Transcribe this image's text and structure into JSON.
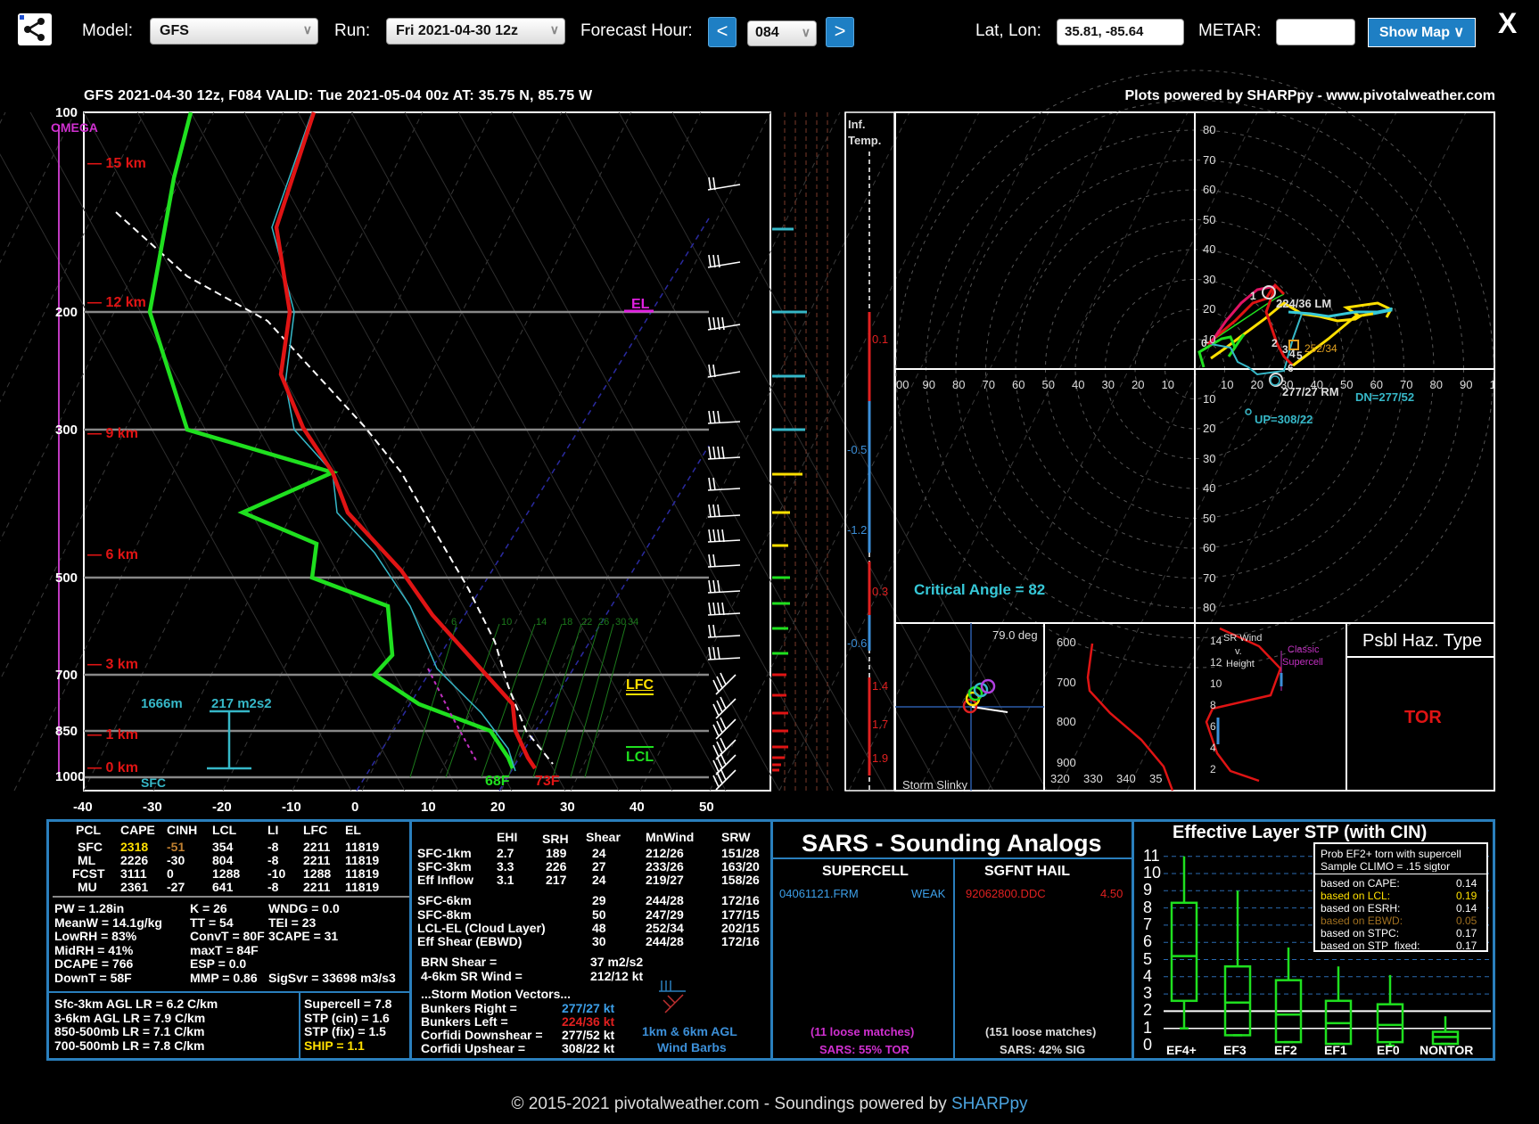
{
  "toolbar": {
    "model_label": "Model:",
    "model_value": "GFS",
    "run_label": "Run:",
    "run_value": "Fri 2021-04-30 12z",
    "forecast_hour_label": "Forecast Hour:",
    "prev_label": "<",
    "forecast_hour_value": "084",
    "next_label": ">",
    "latlon_label": "Lat, Lon:",
    "latlon_value": "35.81, -85.64",
    "metar_label": "METAR:",
    "metar_value": "",
    "show_map_label": "Show Map ∨",
    "close_label": "X"
  },
  "header": {
    "title": "GFS 2021-04-30 12z, F084  VALID: Tue 2021-05-04 00z  AT: 35.75 N, 85.75 W",
    "credit": "Plots powered by SHARPpy - www.pivotalweather.com"
  },
  "skewt": {
    "pressure_labels": [
      "100",
      "200",
      "300",
      "500",
      "700",
      "850",
      "1000"
    ],
    "height_labels": [
      "15 km",
      "12 km",
      "9 km",
      "6 km",
      "3 km",
      "1 km",
      "0 km"
    ],
    "omega_label": "OMEGA",
    "temp_ticks": [
      "-40",
      "-30",
      "-20",
      "-10",
      "0",
      "10",
      "20",
      "30",
      "40",
      "50"
    ],
    "el_label": "EL",
    "lfc_label": "LFC",
    "lcl_label": "LCL",
    "sfc_label": "SFC",
    "surface_td": "68F",
    "surface_t": "73F",
    "eff_inflow_depth": "1666m",
    "eff_srh": "217 m2s2",
    "mixing_ratios": [
      "6",
      "10",
      "14",
      "18",
      "22",
      "26",
      "30",
      "34"
    ],
    "colors": {
      "temp": "#e01414",
      "dewpoint": "#1fe01f",
      "parcel": "#ffffff",
      "wetbulb": "#36b8c8"
    }
  },
  "inferred_temp": {
    "label1": "Inf.",
    "label2": "Temp.",
    "values": [
      "0.1",
      "-0.5",
      "-1.2",
      "0.3",
      "-0.6",
      "1.4",
      "1.7",
      "1.9"
    ]
  },
  "hodograph": {
    "rings": [
      "10",
      "20",
      "30",
      "40",
      "50",
      "60",
      "70",
      "80"
    ],
    "x_ticks_left": [
      "100",
      "90",
      "80",
      "70",
      "60",
      "50",
      "40",
      "30",
      "20",
      "10"
    ],
    "x_ticks_right": [
      "10",
      "20",
      "30",
      "40",
      "50",
      "60",
      "70",
      "80",
      "90",
      "100"
    ],
    "lm_label": "224/36 LM",
    "rm_label": "277/27 RM",
    "dn_label": "DN=277/52",
    "up_label": "UP=308/22",
    "mean_label": "252/34",
    "critical_angle": "Critical Angle = 82",
    "points": [
      "1",
      "2",
      "3",
      "4",
      "5",
      "6"
    ]
  },
  "slinky": {
    "angle": "79.0 deg",
    "label": "Storm Slinky"
  },
  "theta_panel": {
    "y_ticks": [
      "600",
      "700",
      "800",
      "900"
    ],
    "x_ticks": [
      "320",
      "330",
      "340",
      "350"
    ]
  },
  "srwind_panel": {
    "title1": "SR Wind",
    "title2": "v.",
    "title3": "Height",
    "classic": "Classic",
    "supercell": "Supercell",
    "y_ticks": [
      "14",
      "12",
      "10",
      "8",
      "6",
      "4",
      "2"
    ]
  },
  "haz": {
    "title": "Psbl Haz. Type",
    "value": "TOR"
  },
  "parcel_table": {
    "headers": [
      "PCL",
      "CAPE",
      "CINH",
      "LCL",
      "LI",
      "LFC",
      "EL"
    ],
    "rows": [
      [
        "SFC",
        "2318",
        "-51",
        "354",
        "-8",
        "2211",
        "11819"
      ],
      [
        "ML",
        "2226",
        "-30",
        "804",
        "-8",
        "2211",
        "11819"
      ],
      [
        "FCST",
        "3111",
        "0",
        "1288",
        "-10",
        "1288",
        "11819"
      ],
      [
        "MU",
        "2361",
        "-27",
        "641",
        "-8",
        "2211",
        "11819"
      ]
    ]
  },
  "indices": {
    "col1": [
      "PW = 1.28in",
      "MeanW = 14.1g/kg",
      "LowRH = 83%",
      "MidRH = 41%",
      "DCAPE = 766",
      "DownT = 58F"
    ],
    "col2": [
      "K = 26",
      "TT = 54",
      "ConvT = 80F",
      "maxT = 84F",
      "ESP = 0.0",
      "MMP = 0.86"
    ],
    "col3": [
      "WNDG = 0.0",
      "TEI = 23",
      "3CAPE = 31",
      "",
      "",
      "SigSvr = 33698 m3/s3"
    ]
  },
  "lapse": [
    "Sfc-3km AGL LR = 6.2 C/km",
    "3-6km AGL LR = 7.9 C/km",
    "850-500mb LR = 7.1 C/km",
    "700-500mb LR = 7.8 C/km"
  ],
  "composite": [
    "Supercell = 7.8",
    "STP (cin) = 1.6",
    "STP (fix) = 1.5",
    "SHIP = 1.1"
  ],
  "kinematics": {
    "headers": [
      "EHI",
      "SRH",
      "Shear",
      "MnWind",
      "SRW"
    ],
    "rows": [
      [
        "SFC-1km",
        "2.7",
        "189",
        "24",
        "212/26",
        "151/28"
      ],
      [
        "SFC-3km",
        "3.3",
        "226",
        "27",
        "233/26",
        "163/20"
      ],
      [
        "Eff Inflow",
        "3.1",
        "217",
        "24",
        "219/27",
        "158/26"
      ],
      [
        "SFC-6km",
        "",
        "",
        "29",
        "244/28",
        "172/16"
      ],
      [
        "SFC-8km",
        "",
        "",
        "50",
        "247/29",
        "177/15"
      ],
      [
        "LCL-EL (Cloud Layer)",
        "",
        "",
        "48",
        "252/34",
        "202/15"
      ],
      [
        "Eff Shear (EBWD)",
        "",
        "",
        "30",
        "244/28",
        "172/16"
      ]
    ],
    "brn_label": "BRN Shear =",
    "brn_value": "37 m2/s2",
    "sr46_label": "4-6km SR Wind =",
    "sr46_value": "212/12 kt",
    "storm_motion_title": "...Storm Motion Vectors...",
    "bunkers_right_label": "Bunkers Right =",
    "bunkers_right_value": "277/27 kt",
    "bunkers_left_label": "Bunkers Left =",
    "bunkers_left_value": "224/36 kt",
    "corfidi_down_label": "Corfidi Downshear =",
    "corfidi_down_value": "277/52 kt",
    "corfidi_up_label": "Corfidi Upshear =",
    "corfidi_up_value": "308/22 kt",
    "barbs_label1": "1km & 6km AGL",
    "barbs_label2": "Wind Barbs"
  },
  "sars": {
    "title": "SARS - Sounding Analogs",
    "supercell_title": "SUPERCELL",
    "sgfnt_title": "SGFNT HAIL",
    "supercell_match": "04061121.FRM",
    "supercell_type": "WEAK",
    "hail_match": "92062800.DDC",
    "hail_size": "4.50",
    "supercell_loose": "(11 loose matches)",
    "supercell_prob": "SARS: 55% TOR",
    "hail_loose": "(151 loose matches)",
    "hail_prob": "SARS: 42% SIG"
  },
  "stp": {
    "title": "Effective Layer STP (with CIN)",
    "y_ticks": [
      "11",
      "10",
      "9",
      "8",
      "7",
      "6",
      "5",
      "4",
      "3",
      "2",
      "1",
      "0"
    ],
    "categories": [
      "EF4+",
      "EF3",
      "EF2",
      "EF1",
      "EF0",
      "NONTOR"
    ],
    "legend_title1": "Prob EF2+ torn with supercell",
    "legend_title2": "Sample CLIMO = .15 sigtor",
    "legend_rows": [
      [
        "based on CAPE:",
        "0.14"
      ],
      [
        "based on LCL:",
        "0.19"
      ],
      [
        "based on ESRH:",
        "0.14"
      ],
      [
        "based on EBWD:",
        "0.05"
      ],
      [
        "based on STPC:",
        "0.17"
      ],
      [
        "based on STP_fixed:",
        "0.17"
      ]
    ]
  },
  "footer": {
    "text": "© 2015-2021 pivotalweather.com - Soundings powered by ",
    "link": "SHARPpy"
  }
}
